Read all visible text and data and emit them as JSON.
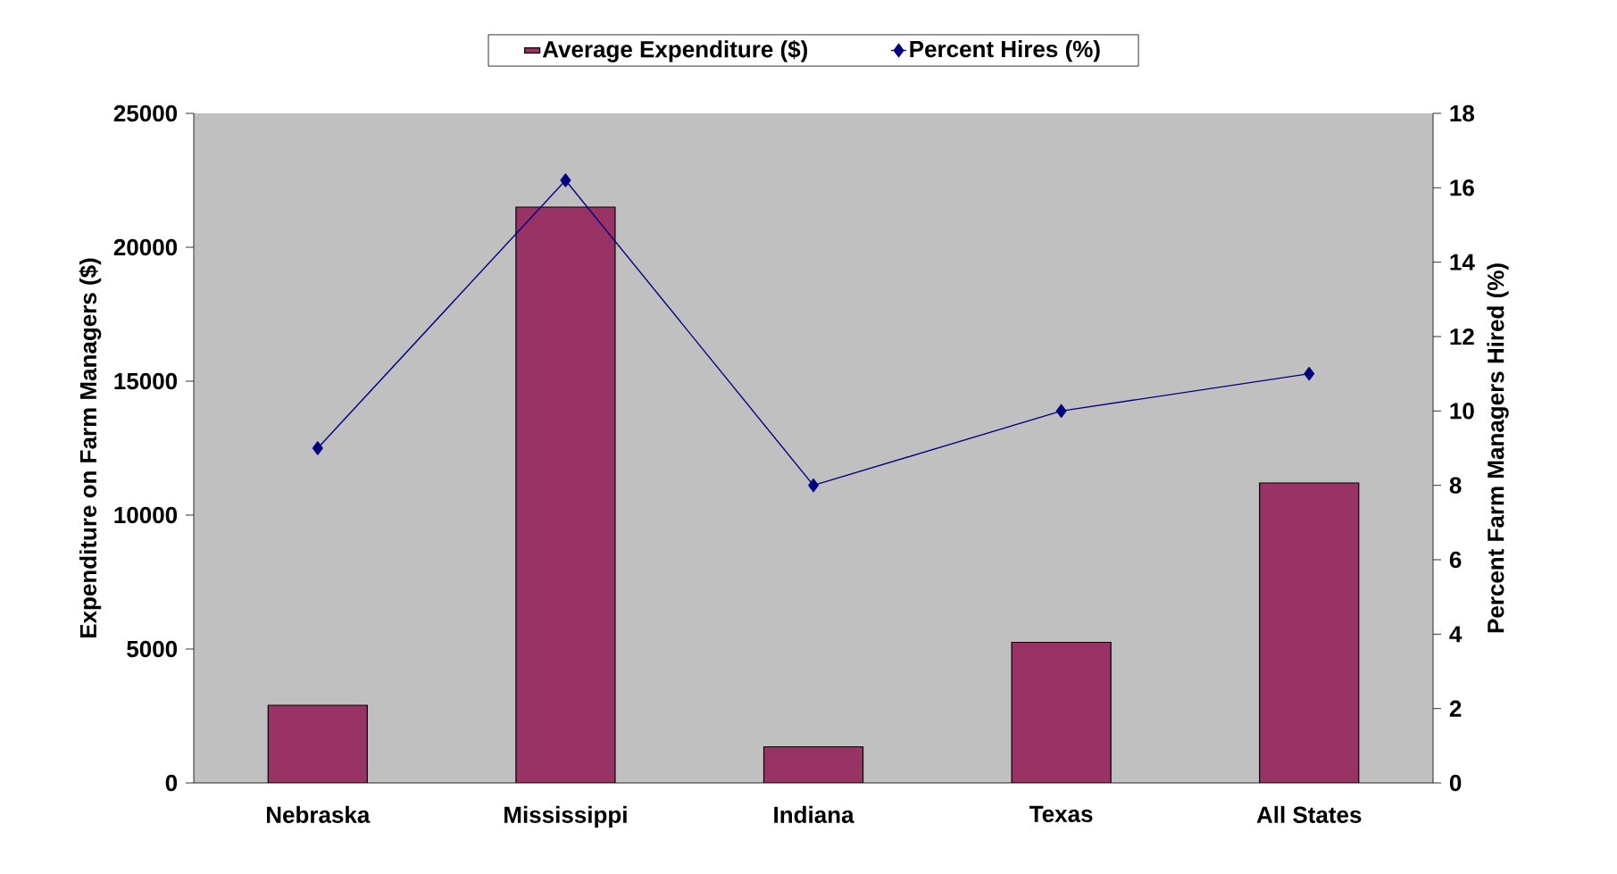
{
  "chart_data": {
    "type": "bar",
    "categories": [
      "Nebraska",
      "Mississippi",
      "Indiana",
      "Texas",
      "All States"
    ],
    "series": [
      {
        "name": "Average Expenditure  ($)",
        "color": "#993366",
        "values": [
          2900,
          21500,
          1350,
          5250,
          11200
        ]
      },
      {
        "name": "Percent Hires (%)",
        "type": "line",
        "axis": "y2",
        "color": "#000080",
        "marker": "diamond",
        "values": [
          9,
          16.2,
          8,
          10,
          11
        ]
      }
    ],
    "ylabel": "Expenditure on Farm Managers ($)",
    "y2label": "Percent Farm Managers Hired (%)",
    "ylim": [
      0,
      25000
    ],
    "yticks": [
      0,
      5000,
      10000,
      15000,
      20000,
      25000
    ],
    "y2lim": [
      0,
      18
    ],
    "y2ticks": [
      0,
      2,
      4,
      6,
      8,
      10,
      12,
      14,
      16,
      18
    ],
    "legend": "top",
    "grid": false
  }
}
